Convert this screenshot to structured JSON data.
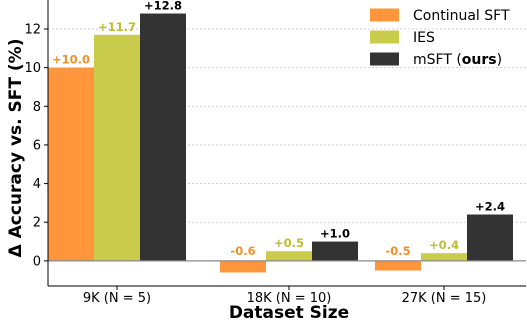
{
  "chart_data": {
    "type": "bar",
    "xlabel": "Dataset Size",
    "ylabel": "Δ Accuracy vs. SFT (%)",
    "categories": [
      "9K (N = 5)",
      "18K (N = 10)",
      "27K (N = 15)"
    ],
    "ylim": [
      -1.3,
      13.5
    ],
    "yticks": [
      0,
      2,
      4,
      6,
      8,
      10,
      12
    ],
    "grid": "horizontal dotted",
    "legend_position": "top-right",
    "series": [
      {
        "name": "Continual SFT",
        "color": "#FF963C",
        "label_color": "#F0902C",
        "values": [
          10.0,
          -0.6,
          -0.5
        ],
        "labels": [
          "+10.0",
          "-0.6",
          "-0.5"
        ]
      },
      {
        "name": "IES",
        "color": "#C8CC4A",
        "label_color": "#BDBE2C",
        "values": [
          11.7,
          0.5,
          0.4
        ],
        "labels": [
          "+11.7",
          "+0.5",
          "+0.4"
        ]
      },
      {
        "name": "mSFT (ours)",
        "name_plain": "mSFT (",
        "name_bold": "ours",
        "name_end": ")",
        "color": "#333333",
        "label_color": "#000000",
        "values": [
          12.8,
          1.0,
          2.4
        ],
        "labels": [
          "+12.8",
          "+1.0",
          "+2.4"
        ]
      }
    ]
  }
}
